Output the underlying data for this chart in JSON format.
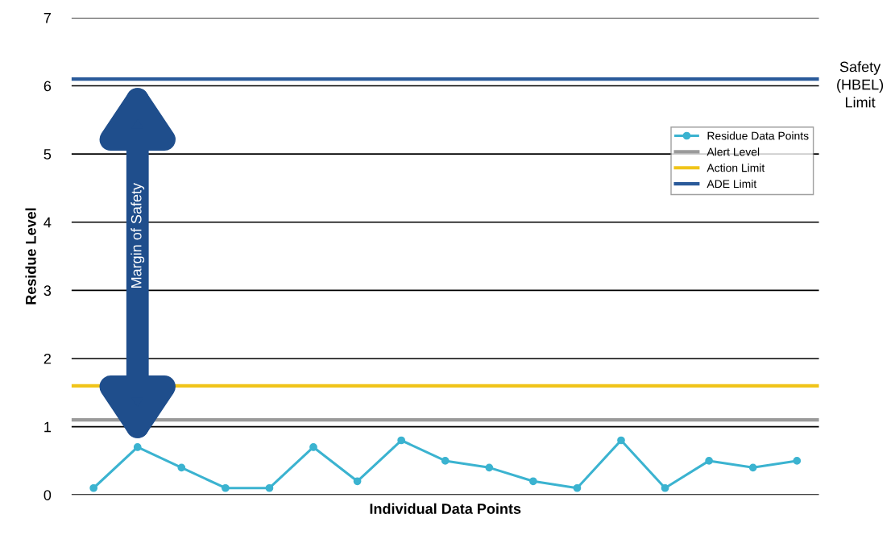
{
  "chart_data": {
    "type": "line",
    "xlabel": "Individual Data Points",
    "ylabel": "Residue Level",
    "categories": [
      null,
      null,
      null,
      null,
      null,
      null,
      null,
      null,
      null,
      null,
      null,
      null,
      null,
      null,
      null,
      null,
      null
    ],
    "series": [
      {
        "name": "Residue Data Points",
        "color": "#3bb3d0",
        "values": [
          0.1,
          0.7,
          0.4,
          0.1,
          0.1,
          0.7,
          0.2,
          0.8,
          0.5,
          0.4,
          0.2,
          0.1,
          0.8,
          0.1,
          0.5,
          0.4,
          0.5
        ]
      }
    ],
    "ref_lines": [
      {
        "axis": "y",
        "value": 1.1,
        "label": "Alert Level",
        "color": "#9a9a9a"
      },
      {
        "axis": "y",
        "value": 1.6,
        "label": "Action Limit",
        "color": "#f0c419"
      },
      {
        "axis": "y",
        "value": 6.1,
        "label": "ADE Limit",
        "color": "#2a5a9a"
      }
    ],
    "annotations": [
      "Margin of Safety",
      "Safety\n(HBEL)\nLimit"
    ],
    "ylim": [
      0,
      7
    ],
    "yticks": [
      0,
      1,
      2,
      3,
      4,
      5,
      6,
      7
    ],
    "grid": "y",
    "legend": "right",
    "marker": "circle",
    "line_style": "solid"
  }
}
